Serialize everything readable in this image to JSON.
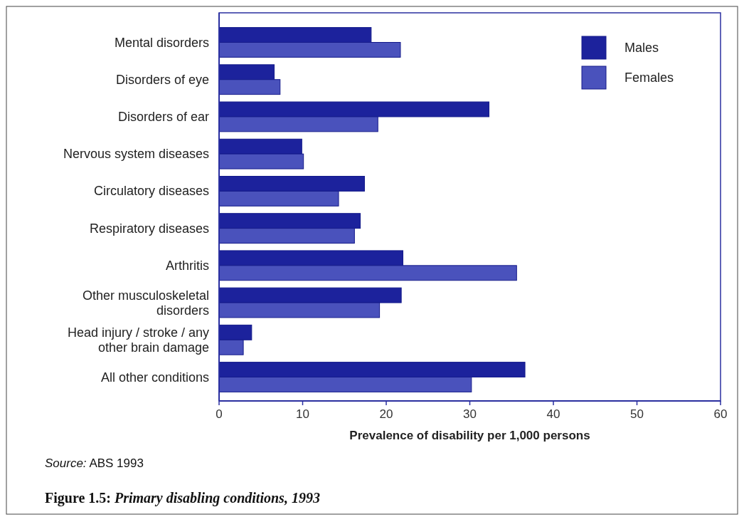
{
  "chart_data": {
    "type": "bar",
    "orientation": "horizontal",
    "title": "Figure 1.5: Primary disabling conditions, 1993",
    "xlabel": "Prevalence of disability per 1,000 persons",
    "annotations": [
      "Source: ABS 1993"
    ],
    "categories": [
      "Mental disorders",
      "Disorders of eye",
      "Disorders of ear",
      "Nervous system diseases",
      "Circulatory diseases",
      "Respiratory diseases",
      "Arthritis",
      "Other musculoskeletal disorders",
      "Head injury / stroke / any other brain damage",
      "All other conditions"
    ],
    "series": [
      {
        "name": "Males",
        "color": "#1c229c",
        "values": [
          18.2,
          6.6,
          32.3,
          9.9,
          17.4,
          16.9,
          22.0,
          21.8,
          3.9,
          36.6
        ]
      },
      {
        "name": "Females",
        "color": "#4a52bc",
        "values": [
          21.7,
          7.3,
          19.0,
          10.1,
          14.3,
          16.2,
          35.6,
          19.2,
          2.9,
          30.2
        ]
      }
    ],
    "xlim": [
      0,
      60
    ],
    "xticks": [
      0,
      10,
      20,
      30,
      40,
      50,
      60
    ],
    "grid": false,
    "legend": "top right"
  }
}
